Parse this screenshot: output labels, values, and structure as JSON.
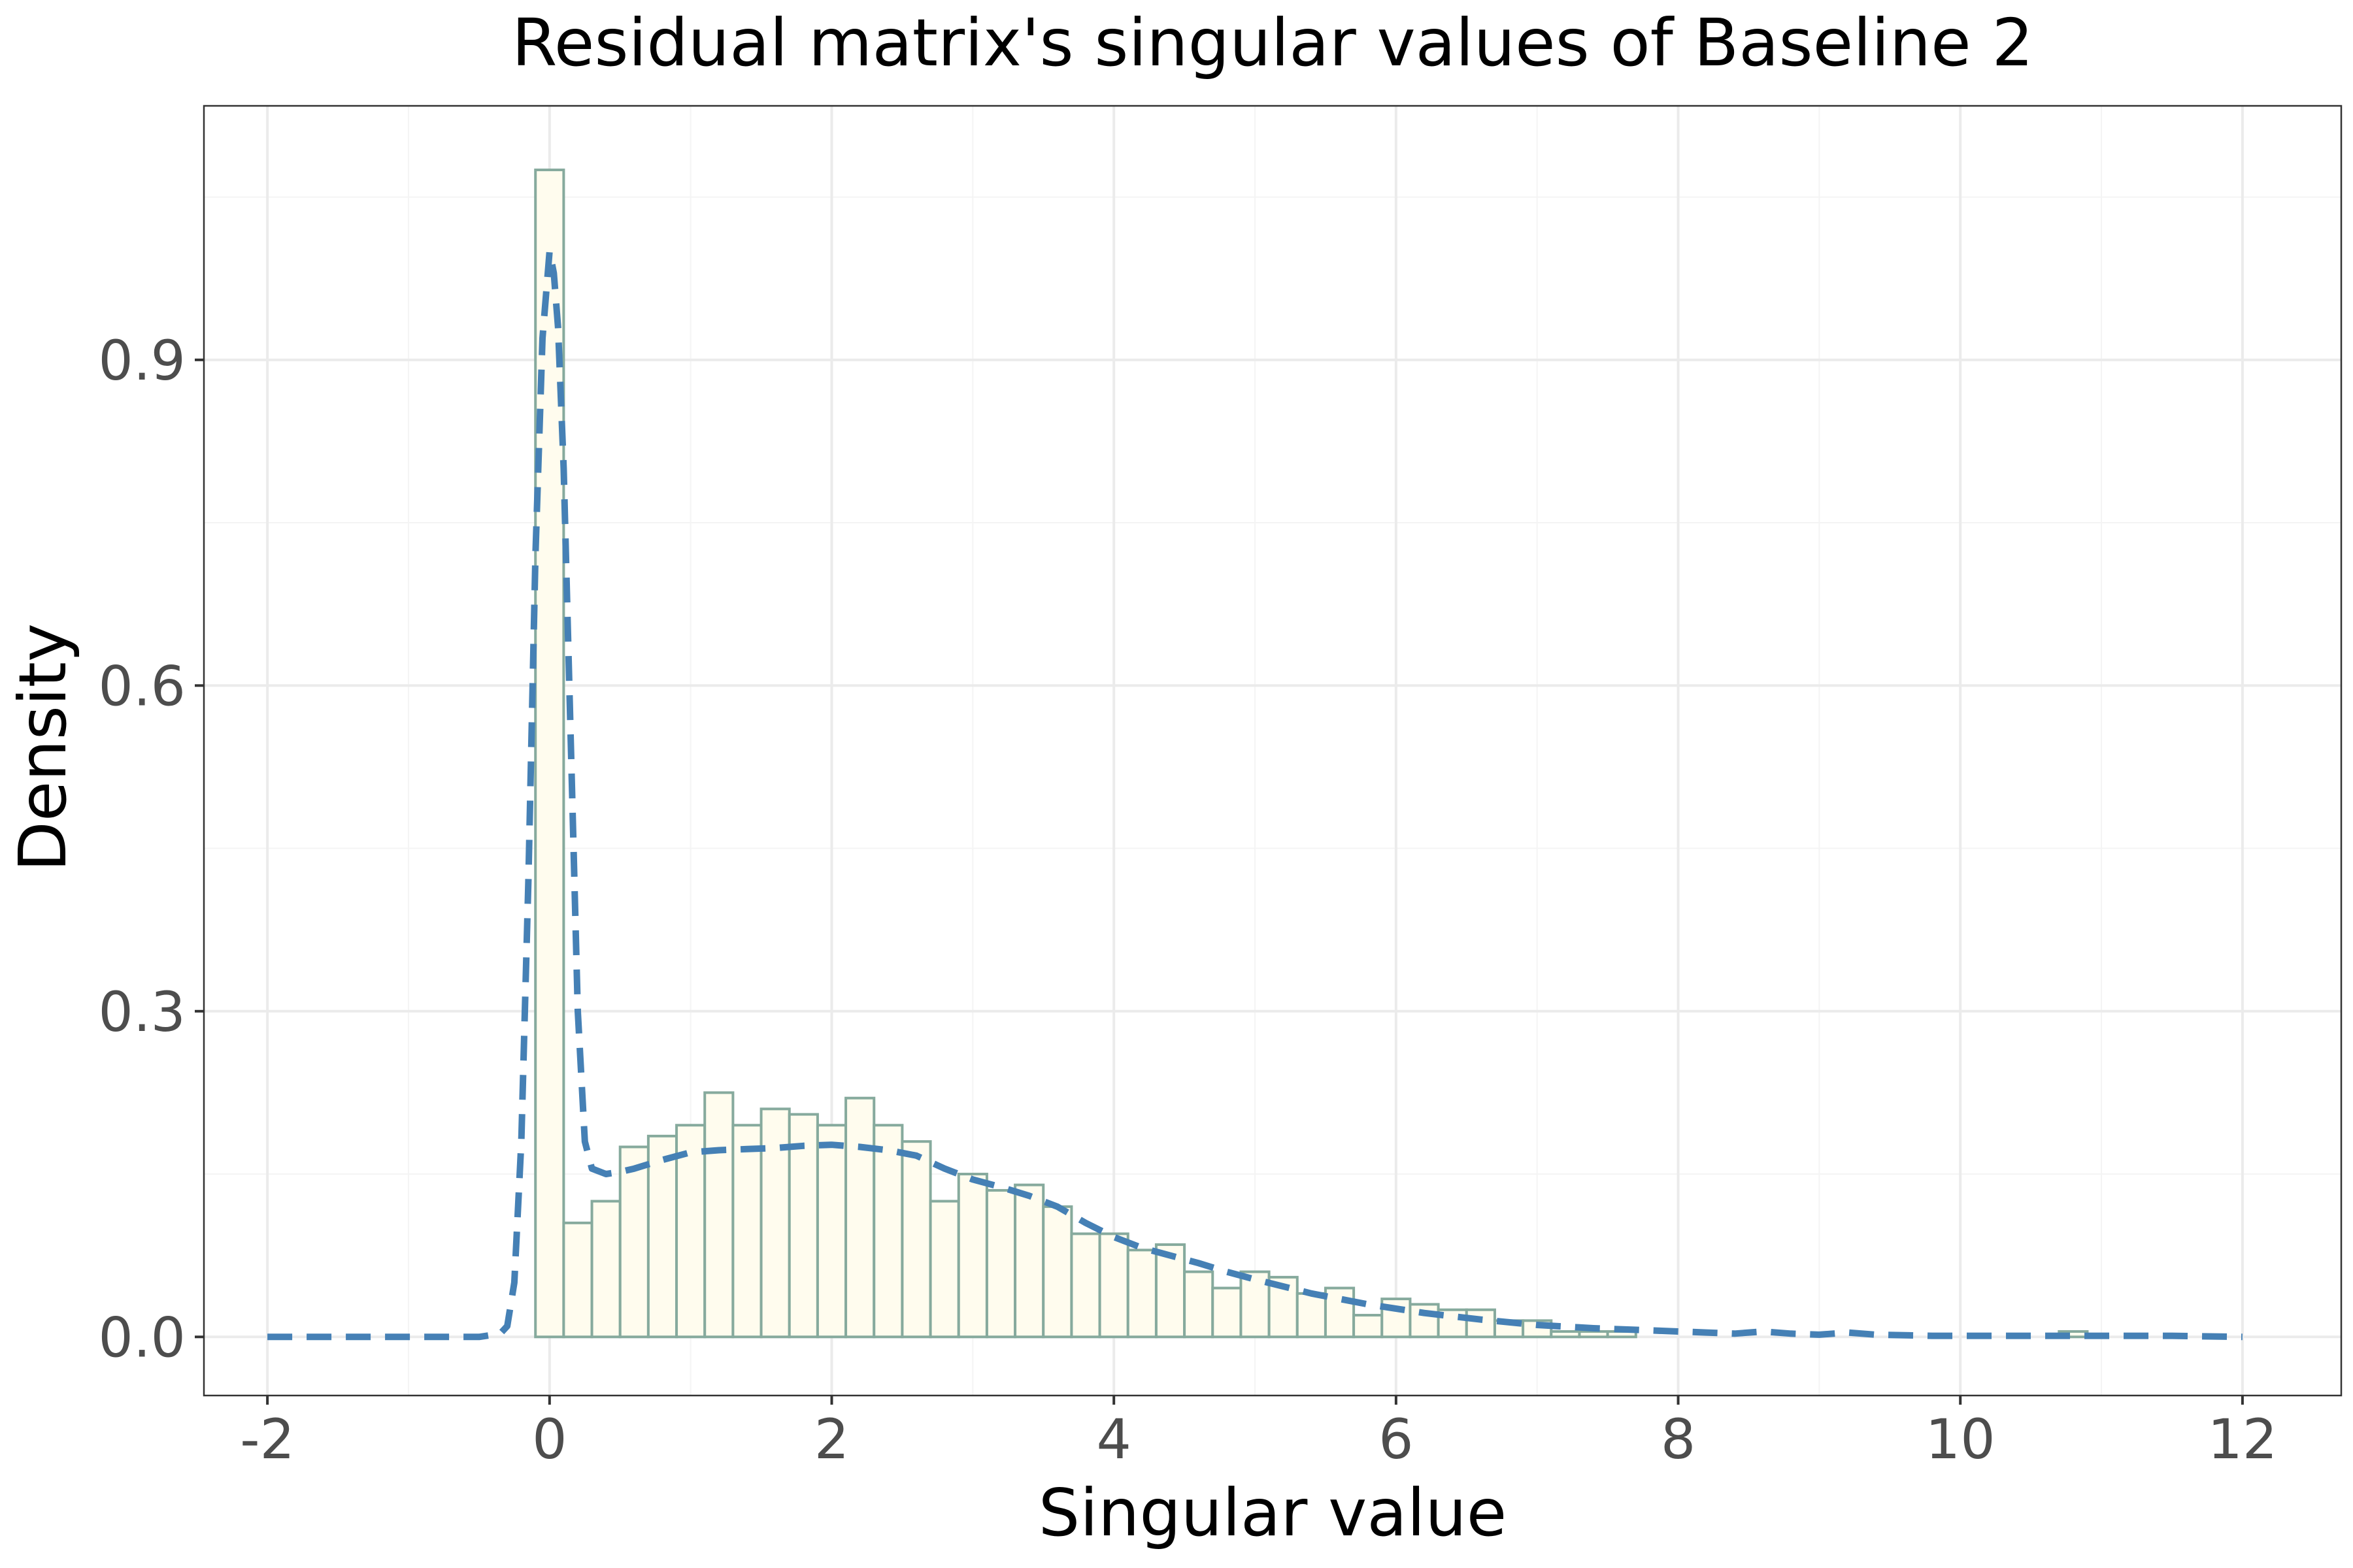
{
  "chart_data": {
    "type": "histogram",
    "title": "Residual matrix's singular values of Baseline 2",
    "xlabel": "Singular value",
    "ylabel": "Density",
    "xlim": [
      -2.45,
      12.7
    ],
    "ylim": [
      -0.054,
      1.134
    ],
    "x_ticks": [
      -2,
      0,
      2,
      4,
      6,
      8,
      10,
      12
    ],
    "x_tick_labels": [
      "-2",
      "0",
      "2",
      "4",
      "6",
      "8",
      "10",
      "12"
    ],
    "y_ticks": [
      0.0,
      0.3,
      0.6,
      0.9
    ],
    "y_tick_labels": [
      "0.0",
      "0.3",
      "0.6",
      "0.9"
    ],
    "grid": true,
    "bin_width": 0.2,
    "bins": [
      {
        "x0": -0.1,
        "x1": 0.1,
        "density": 1.075
      },
      {
        "x0": 0.1,
        "x1": 0.3,
        "density": 0.105
      },
      {
        "x0": 0.3,
        "x1": 0.5,
        "density": 0.125
      },
      {
        "x0": 0.5,
        "x1": 0.7,
        "density": 0.175
      },
      {
        "x0": 0.7,
        "x1": 0.9,
        "density": 0.185
      },
      {
        "x0": 0.9,
        "x1": 1.1,
        "density": 0.195
      },
      {
        "x0": 1.1,
        "x1": 1.3,
        "density": 0.225
      },
      {
        "x0": 1.3,
        "x1": 1.5,
        "density": 0.195
      },
      {
        "x0": 1.5,
        "x1": 1.7,
        "density": 0.21
      },
      {
        "x0": 1.7,
        "x1": 1.9,
        "density": 0.205
      },
      {
        "x0": 1.9,
        "x1": 2.1,
        "density": 0.195
      },
      {
        "x0": 2.1,
        "x1": 2.3,
        "density": 0.22
      },
      {
        "x0": 2.3,
        "x1": 2.5,
        "density": 0.195
      },
      {
        "x0": 2.5,
        "x1": 2.7,
        "density": 0.18
      },
      {
        "x0": 2.7,
        "x1": 2.9,
        "density": 0.125
      },
      {
        "x0": 2.9,
        "x1": 3.1,
        "density": 0.15
      },
      {
        "x0": 3.1,
        "x1": 3.3,
        "density": 0.135
      },
      {
        "x0": 3.3,
        "x1": 3.5,
        "density": 0.14
      },
      {
        "x0": 3.5,
        "x1": 3.7,
        "density": 0.12
      },
      {
        "x0": 3.7,
        "x1": 3.9,
        "density": 0.095
      },
      {
        "x0": 3.9,
        "x1": 4.1,
        "density": 0.095
      },
      {
        "x0": 4.1,
        "x1": 4.3,
        "density": 0.08
      },
      {
        "x0": 4.3,
        "x1": 4.5,
        "density": 0.085
      },
      {
        "x0": 4.5,
        "x1": 4.7,
        "density": 0.06
      },
      {
        "x0": 4.7,
        "x1": 4.9,
        "density": 0.045
      },
      {
        "x0": 4.9,
        "x1": 5.1,
        "density": 0.06
      },
      {
        "x0": 5.1,
        "x1": 5.3,
        "density": 0.055
      },
      {
        "x0": 5.3,
        "x1": 5.5,
        "density": 0.04
      },
      {
        "x0": 5.5,
        "x1": 5.7,
        "density": 0.045
      },
      {
        "x0": 5.7,
        "x1": 5.9,
        "density": 0.02
      },
      {
        "x0": 5.9,
        "x1": 6.1,
        "density": 0.035
      },
      {
        "x0": 6.1,
        "x1": 6.3,
        "density": 0.03
      },
      {
        "x0": 6.3,
        "x1": 6.5,
        "density": 0.025
      },
      {
        "x0": 6.5,
        "x1": 6.7,
        "density": 0.025
      },
      {
        "x0": 6.7,
        "x1": 6.9,
        "density": 0.015
      },
      {
        "x0": 6.9,
        "x1": 7.1,
        "density": 0.015
      },
      {
        "x0": 7.1,
        "x1": 7.3,
        "density": 0.005
      },
      {
        "x0": 7.3,
        "x1": 7.5,
        "density": 0.005
      },
      {
        "x0": 7.5,
        "x1": 7.7,
        "density": 0.005
      },
      {
        "x0": 10.7,
        "x1": 10.9,
        "density": 0.005
      }
    ],
    "density_curve": {
      "x": [
        -2.0,
        -1.5,
        -1.0,
        -0.5,
        -0.35,
        -0.3,
        -0.25,
        -0.2,
        -0.15,
        -0.1,
        -0.05,
        0.0,
        0.03,
        0.06,
        0.1,
        0.15,
        0.2,
        0.25,
        0.3,
        0.4,
        0.5,
        0.6,
        0.8,
        1.0,
        1.2,
        1.4,
        1.6,
        1.8,
        2.0,
        2.2,
        2.4,
        2.6,
        2.8,
        3.0,
        3.2,
        3.4,
        3.6,
        3.8,
        4.0,
        4.2,
        4.4,
        4.6,
        4.8,
        5.0,
        5.4,
        5.8,
        6.2,
        6.6,
        7.0,
        7.4,
        7.8,
        8.2,
        8.4,
        8.6,
        8.8,
        9.0,
        9.2,
        9.4,
        9.8,
        10.2,
        10.6,
        11.0,
        11.5,
        12.0
      ],
      "y": [
        0.0,
        0.0,
        0.0,
        0.0,
        0.003,
        0.01,
        0.05,
        0.18,
        0.42,
        0.72,
        0.92,
        1.0,
        0.98,
        0.93,
        0.8,
        0.55,
        0.3,
        0.18,
        0.155,
        0.15,
        0.152,
        0.155,
        0.163,
        0.17,
        0.172,
        0.173,
        0.174,
        0.176,
        0.177,
        0.175,
        0.172,
        0.167,
        0.155,
        0.145,
        0.138,
        0.13,
        0.12,
        0.105,
        0.092,
        0.082,
        0.075,
        0.068,
        0.06,
        0.053,
        0.04,
        0.03,
        0.022,
        0.016,
        0.011,
        0.008,
        0.006,
        0.004,
        0.003,
        0.005,
        0.003,
        0.002,
        0.004,
        0.002,
        0.001,
        0.001,
        0.001,
        0.001,
        0.001,
        0.0
      ]
    },
    "colors": {
      "bar_fill": "#fffcee",
      "bar_stroke": "#86aa9d",
      "curve": "#4580b5",
      "panel_border": "#333333",
      "grid_major": "#ebebeb",
      "grid_minor": "#f4f4f4",
      "tick": "#333333"
    }
  }
}
